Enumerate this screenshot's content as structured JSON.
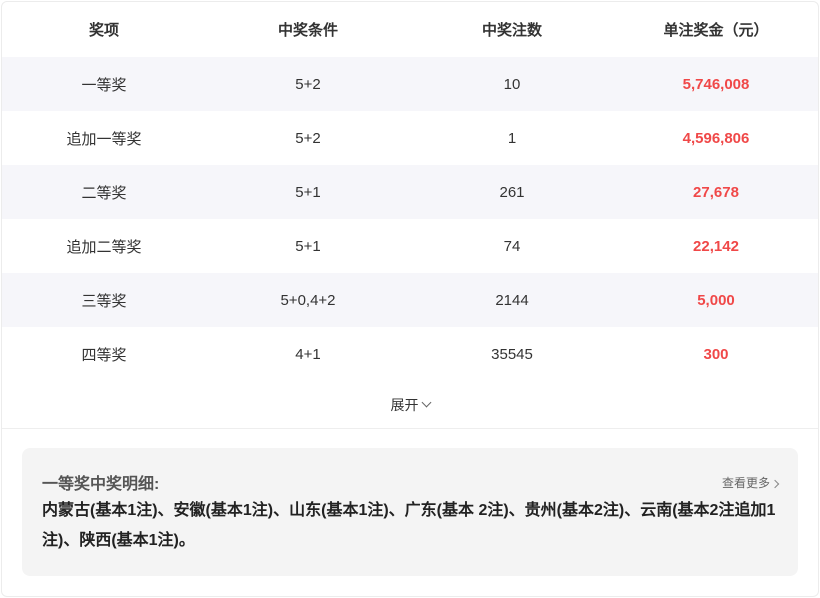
{
  "table": {
    "headers": [
      "奖项",
      "中奖条件",
      "中奖注数",
      "单注奖金（元）"
    ],
    "rows": [
      {
        "level": "一等奖",
        "condition": "5+2",
        "count": "10",
        "prize": "5,746,008"
      },
      {
        "level": "追加一等奖",
        "condition": "5+2",
        "count": "1",
        "prize": "4,596,806"
      },
      {
        "level": "二等奖",
        "condition": "5+1",
        "count": "261",
        "prize": "27,678"
      },
      {
        "level": "追加二等奖",
        "condition": "5+1",
        "count": "74",
        "prize": "22,142"
      },
      {
        "level": "三等奖",
        "condition": "5+0,4+2",
        "count": "2144",
        "prize": "5,000"
      },
      {
        "level": "四等奖",
        "condition": "4+1",
        "count": "35545",
        "prize": "300"
      }
    ]
  },
  "expand_label": "展开",
  "detail": {
    "title": "一等奖中奖明细:",
    "more_label": "查看更多",
    "text": "内蒙古(基本1注)、安徽(基本1注)、山东(基本1注)、广东(基本 2注)、贵州(基本2注)、云南(基本2注追加1注)、陕西(基本1注)。"
  },
  "colors": {
    "prize": "#f04848",
    "alt_row": "#f6f6fa"
  }
}
